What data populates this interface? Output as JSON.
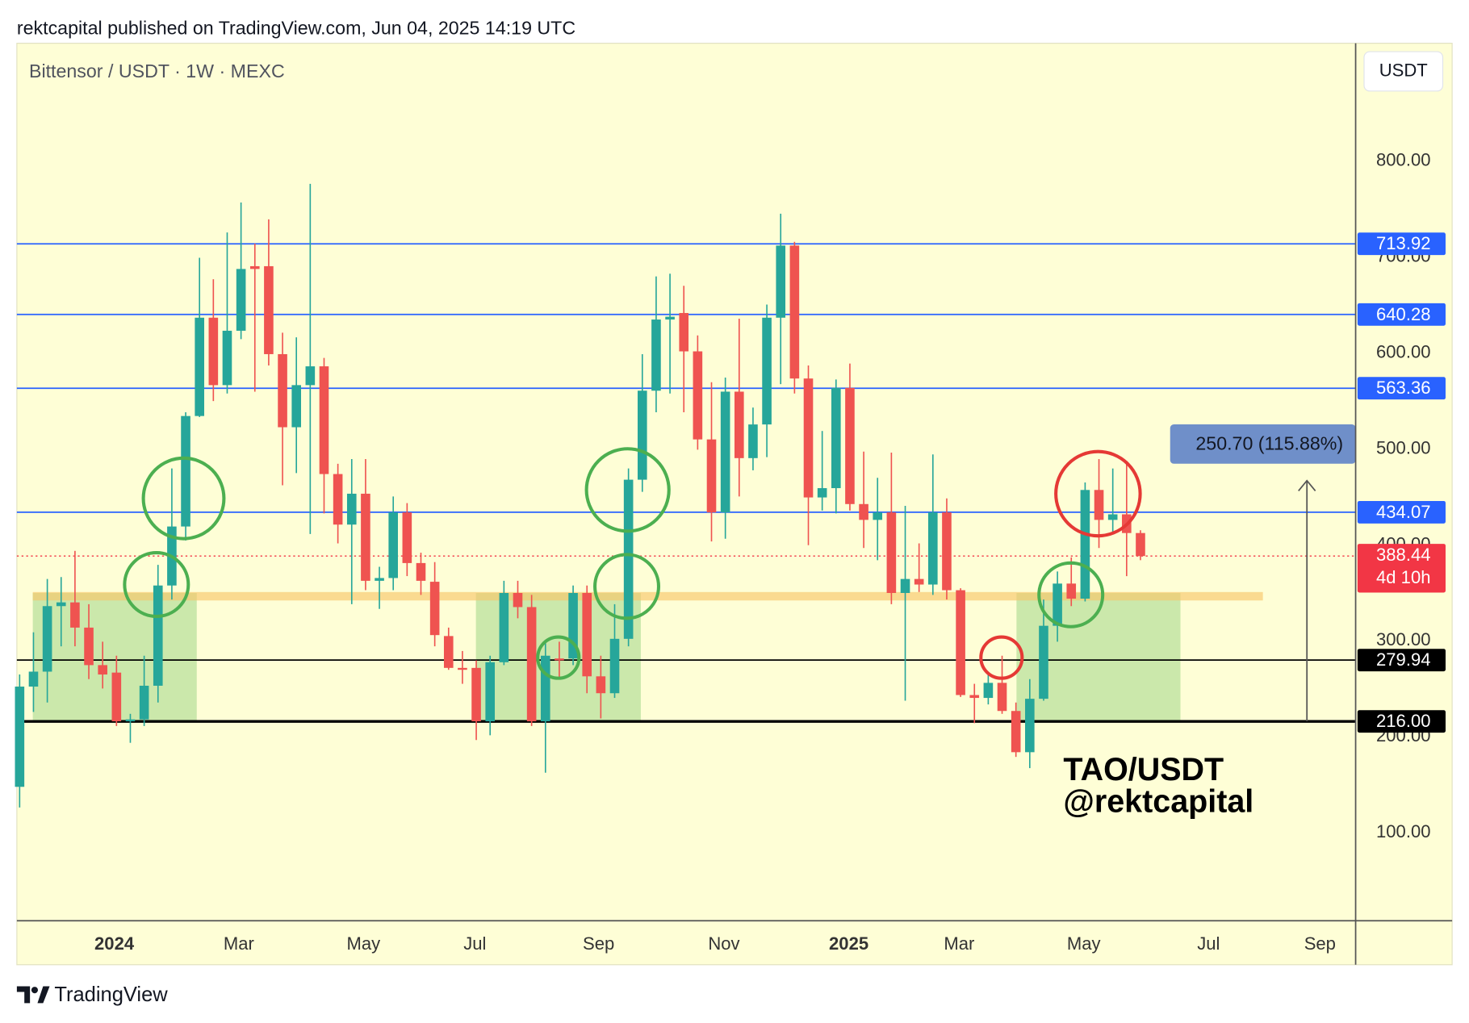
{
  "header": {
    "text": "rektcapital published on TradingView.com, Jun 04, 2025 14:19 UTC"
  },
  "footer": {
    "brand": "TradingView"
  },
  "chart_data": {
    "type": "candlestick",
    "title": "Bittensor / USDT · 1W · MEXC",
    "currency": "USDT",
    "annotation": [
      "TAO/USDT",
      "@rektcapital"
    ],
    "measurement": "250.70 (115.88%)",
    "up_color": "#26a69a",
    "down_color": "#ef5350",
    "open": [
      147.8,
      252.3,
      267.9,
      336.2,
      340.1,
      313.8,
      274.7,
      266.9,
      216.1,
      218.1,
      253.2,
      357.7,
      419.2,
      534.4,
      636.9,
      566.6,
      623.3,
      690.6,
      690.6,
      598.9,
      522.7,
      566.6,
      586.2,
      473.9,
      421.2,
      453.4,
      362.6,
      365.5,
      433.9,
      381.1,
      361.6,
      305.0,
      271.8,
      271.8,
      216.1,
      277.7,
      349.9,
      335.2,
      216.1,
      281.6,
      281.6,
      349.9,
      263.0,
      245.4,
      302.1,
      468.0,
      560.8,
      635.0,
      641.8,
      601.8,
      510.0,
      433.9,
      559.8,
      490.5,
      525.6,
      636.9,
      712.1,
      573.5,
      449.5,
      459.2,
      563.7,
      442.6,
      426.1,
      433.9,
      349.9,
      364.5,
      358.7,
      433.9,
      352.8,
      243.5,
      240.5,
      256.2,
      226.9,
      183.9,
      239.6,
      315.7,
      359.7,
      344.0,
      457.3,
      426.1,
      431.9,
      412.4
    ],
    "high": [
      264.9,
      308.9,
      364.5,
      366.5,
      393.8,
      338.2,
      299.1,
      284.5,
      223.9,
      284.5,
      379.2,
      479.7,
      538.3,
      699.4,
      677.0,
      725.8,
      757.0,
      714.1,
      739.4,
      621.3,
      616.4,
      776.5,
      595.0,
      484.6,
      489.5,
      489.5,
      377.2,
      450.5,
      443.6,
      391.9,
      382.1,
      313.8,
      289.4,
      279.6,
      284.5,
      362.6,
      362.6,
      347.9,
      299.1,
      299.1,
      357.7,
      357.7,
      284.5,
      338.2,
      479.7,
      598.9,
      679.9,
      682.8,
      670.1,
      618.4,
      569.6,
      574.5,
      635.9,
      543.2,
      650.6,
      745.3,
      716.0,
      587.1,
      518.8,
      572.5,
      589.1,
      497.3,
      470.0,
      496.3,
      440.7,
      401.6,
      494.4,
      448.5,
      354.8,
      255.2,
      264.9,
      284.5,
      235.7,
      260.1,
      343.1,
      372.3,
      387.0,
      465.1,
      489.5,
      479.7,
      487.6,
      415.3
    ],
    "low": [
      126.3,
      225.9,
      235.7,
      294.3,
      294.3,
      260.1,
      250.3,
      211.2,
      193.7,
      211.2,
      235.7,
      343.1,
      404.6,
      533.4,
      550.0,
      557.9,
      614.5,
      559.8,
      587.1,
      462.2,
      474.9,
      411.4,
      432.9,
      401.6,
      338.2,
      352.8,
      333.3,
      352.8,
      367.5,
      347.9,
      294.3,
      269.8,
      255.2,
      196.6,
      201.5,
      274.7,
      323.5,
      211.2,
      162.5,
      260.1,
      274.7,
      245.4,
      219.1,
      240.5,
      294.3,
      455.3,
      538.3,
      557.9,
      538.3,
      499.3,
      403.6,
      406.5,
      450.5,
      477.8,
      491.5,
      567.6,
      557.9,
      399.7,
      435.8,
      432.9,
      435.8,
      396.8,
      384.1,
      338.2,
      237.6,
      350.9,
      347.9,
      343.1,
      241.5,
      214.2,
      233.7,
      223.9,
      179.0,
      167.3,
      237.6,
      299.1,
      336.2,
      341.1,
      396.8,
      411.4,
      367.5,
      384.1
    ],
    "close": [
      252.3,
      267.9,
      336.2,
      340.1,
      313.8,
      274.7,
      264.9,
      216.1,
      218.1,
      253.2,
      357.7,
      419.2,
      534.4,
      636.9,
      566.6,
      623.3,
      687.7,
      687.7,
      598.9,
      522.7,
      566.6,
      586.2,
      473.9,
      421.2,
      453.4,
      362.6,
      365.5,
      433.9,
      381.1,
      362.6,
      306.0,
      271.8,
      269.8,
      216.1,
      277.7,
      349.9,
      335.2,
      216.1,
      284.5,
      279.6,
      349.9,
      263.0,
      245.4,
      302.1,
      468.0,
      560.8,
      635.0,
      637.9,
      601.8,
      510.0,
      433.9,
      559.8,
      490.5,
      525.6,
      636.9,
      712.1,
      573.5,
      449.5,
      459.2,
      563.7,
      442.6,
      426.1,
      433.9,
      349.9,
      364.5,
      358.7,
      433.9,
      352.8,
      243.5,
      240.5,
      256.2,
      226.9,
      183.9,
      239.6,
      315.7,
      359.7,
      344.0,
      457.3,
      426.1,
      431.9,
      412.4,
      388.44
    ],
    "xlim": [
      -0.2,
      96.55
    ],
    "xticks": [
      {
        "value": 6.84,
        "label": "2024"
      },
      {
        "value": 15.84,
        "label": "Mar"
      },
      {
        "value": 24.85,
        "label": "May"
      },
      {
        "value": 32.9,
        "label": "Jul"
      },
      {
        "value": 41.84,
        "label": "Sep"
      },
      {
        "value": 50.9,
        "label": "Nov"
      },
      {
        "value": 59.92,
        "label": "2025"
      },
      {
        "value": 67.9,
        "label": "Mar"
      },
      {
        "value": 76.9,
        "label": "May"
      },
      {
        "value": 85.92,
        "label": "Jul"
      },
      {
        "value": 93.97,
        "label": "Sep"
      }
    ],
    "ylim": [
      8.2,
      923
    ],
    "yticks": [
      {
        "value": 100,
        "label": "100.00"
      },
      {
        "value": 200,
        "label": "200.00"
      },
      {
        "value": 300,
        "label": "300.00"
      },
      {
        "value": 400,
        "label": "400.00"
      },
      {
        "value": 500,
        "label": "500.00"
      },
      {
        "value": 600,
        "label": "600.00"
      },
      {
        "value": 700,
        "label": "700.00"
      },
      {
        "value": 800,
        "label": "800.00"
      }
    ],
    "grid": false,
    "levels": [
      {
        "value": 713.92,
        "color": "#2962ff",
        "line_width": 1.5
      },
      {
        "value": 640.28,
        "color": "#2962ff",
        "line_width": 1.5
      },
      {
        "value": 563.36,
        "color": "#2962ff",
        "line_width": 1.5
      },
      {
        "value": 434.07,
        "color": "#2962ff",
        "line_width": 1.5
      },
      {
        "value": 279.94,
        "color": "#000000",
        "line_width": 1.5
      },
      {
        "value": 216,
        "label": "216.00",
        "color": "#000000",
        "line_width": 3
      }
    ],
    "last_price": {
      "value": 388.44,
      "countdown": "4d 10h",
      "color": "#f23645"
    }
  }
}
